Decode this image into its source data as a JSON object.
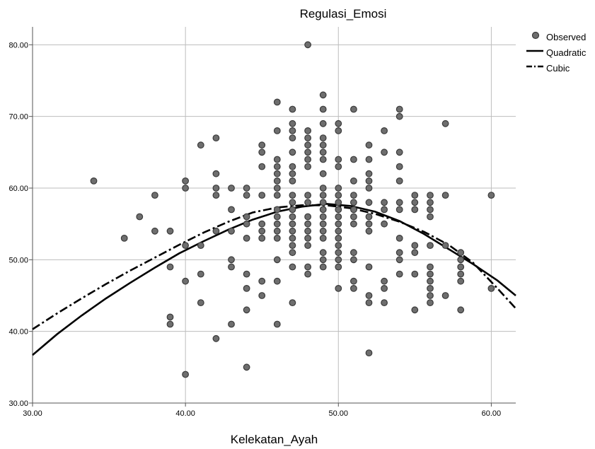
{
  "chart_data": {
    "type": "scatter",
    "title": "Regulasi_Emosi",
    "xlabel": "Kelekatan_Ayah",
    "ylabel": "",
    "xlim": [
      30,
      61.6
    ],
    "ylim": [
      30,
      82.5
    ],
    "xticks": [
      "30.00",
      "40.00",
      "50.00",
      "60.00"
    ],
    "yticks": [
      "30.00",
      "40.00",
      "50.00",
      "60.00",
      "70.00",
      "80.00"
    ],
    "grid": true,
    "legend_position": "right",
    "legend": [
      {
        "label": "Observed",
        "style": "marker"
      },
      {
        "label": "Quadratic",
        "style": "solid"
      },
      {
        "label": "Cubic",
        "style": "dashdot"
      }
    ],
    "colors": {
      "marker_fill": "#6e6e6e",
      "marker_edge": "#3a3a3a",
      "line": "#000000",
      "grid": "#bdbdbd",
      "axis": "#555555"
    },
    "series": [
      {
        "name": "Observed",
        "points": [
          [
            34,
            61
          ],
          [
            36,
            53
          ],
          [
            37,
            56
          ],
          [
            38,
            59
          ],
          [
            38,
            54
          ],
          [
            39,
            54
          ],
          [
            39,
            49
          ],
          [
            39,
            42
          ],
          [
            39,
            41
          ],
          [
            40,
            61
          ],
          [
            40,
            60
          ],
          [
            40,
            52
          ],
          [
            40,
            47
          ],
          [
            40,
            34
          ],
          [
            41,
            66
          ],
          [
            41,
            52
          ],
          [
            41,
            48
          ],
          [
            41,
            44
          ],
          [
            42,
            67
          ],
          [
            42,
            62
          ],
          [
            42,
            60
          ],
          [
            42,
            59
          ],
          [
            42,
            54
          ],
          [
            42,
            39
          ],
          [
            43,
            60
          ],
          [
            43,
            57
          ],
          [
            43,
            54
          ],
          [
            43,
            50
          ],
          [
            43,
            49
          ],
          [
            43,
            41
          ],
          [
            44,
            60
          ],
          [
            44,
            59
          ],
          [
            44,
            56
          ],
          [
            44,
            55
          ],
          [
            44,
            53
          ],
          [
            44,
            48
          ],
          [
            44,
            46
          ],
          [
            44,
            43
          ],
          [
            44,
            35
          ],
          [
            45,
            66
          ],
          [
            45,
            65
          ],
          [
            45,
            63
          ],
          [
            45,
            59
          ],
          [
            45,
            55
          ],
          [
            45,
            54
          ],
          [
            45,
            53
          ],
          [
            45,
            47
          ],
          [
            45,
            45
          ],
          [
            46,
            72
          ],
          [
            46,
            68
          ],
          [
            46,
            64
          ],
          [
            46,
            63
          ],
          [
            46,
            62
          ],
          [
            46,
            61
          ],
          [
            46,
            60
          ],
          [
            46,
            59
          ],
          [
            46,
            57
          ],
          [
            46,
            56
          ],
          [
            46,
            55
          ],
          [
            46,
            54
          ],
          [
            46,
            53
          ],
          [
            46,
            50
          ],
          [
            46,
            47
          ],
          [
            46,
            41
          ],
          [
            47,
            71
          ],
          [
            47,
            69
          ],
          [
            47,
            68
          ],
          [
            47,
            67
          ],
          [
            47,
            65
          ],
          [
            47,
            63
          ],
          [
            47,
            62
          ],
          [
            47,
            61
          ],
          [
            47,
            59
          ],
          [
            47,
            58
          ],
          [
            47,
            57
          ],
          [
            47,
            56
          ],
          [
            47,
            55
          ],
          [
            47,
            54
          ],
          [
            47,
            53
          ],
          [
            47,
            52
          ],
          [
            47,
            51
          ],
          [
            47,
            49
          ],
          [
            47,
            44
          ],
          [
            48,
            80
          ],
          [
            48,
            68
          ],
          [
            48,
            67
          ],
          [
            48,
            66
          ],
          [
            48,
            65
          ],
          [
            48,
            64
          ],
          [
            48,
            63
          ],
          [
            48,
            59
          ],
          [
            48,
            58
          ],
          [
            48,
            56
          ],
          [
            48,
            55
          ],
          [
            48,
            54
          ],
          [
            48,
            53
          ],
          [
            48,
            52
          ],
          [
            48,
            49
          ],
          [
            48,
            48
          ],
          [
            49,
            73
          ],
          [
            49,
            71
          ],
          [
            49,
            69
          ],
          [
            49,
            67
          ],
          [
            49,
            66
          ],
          [
            49,
            65
          ],
          [
            49,
            64
          ],
          [
            49,
            62
          ],
          [
            49,
            60
          ],
          [
            49,
            59
          ],
          [
            49,
            58
          ],
          [
            49,
            57
          ],
          [
            49,
            56
          ],
          [
            49,
            55
          ],
          [
            49,
            54
          ],
          [
            49,
            53
          ],
          [
            49,
            51
          ],
          [
            49,
            50
          ],
          [
            49,
            49
          ],
          [
            50,
            69
          ],
          [
            50,
            68
          ],
          [
            50,
            64
          ],
          [
            50,
            63
          ],
          [
            50,
            60
          ],
          [
            50,
            59
          ],
          [
            50,
            58
          ],
          [
            50,
            57
          ],
          [
            50,
            56
          ],
          [
            50,
            55
          ],
          [
            50,
            54
          ],
          [
            50,
            53
          ],
          [
            50,
            52
          ],
          [
            50,
            51
          ],
          [
            50,
            50
          ],
          [
            50,
            49
          ],
          [
            50,
            46
          ],
          [
            51,
            71
          ],
          [
            51,
            64
          ],
          [
            51,
            61
          ],
          [
            51,
            59
          ],
          [
            51,
            58
          ],
          [
            51,
            57
          ],
          [
            51,
            56
          ],
          [
            51,
            55
          ],
          [
            51,
            51
          ],
          [
            51,
            50
          ],
          [
            51,
            47
          ],
          [
            51,
            46
          ],
          [
            52,
            66
          ],
          [
            52,
            64
          ],
          [
            52,
            62
          ],
          [
            52,
            61
          ],
          [
            52,
            60
          ],
          [
            52,
            58
          ],
          [
            52,
            56
          ],
          [
            52,
            55
          ],
          [
            52,
            54
          ],
          [
            52,
            49
          ],
          [
            52,
            45
          ],
          [
            52,
            44
          ],
          [
            52,
            37
          ],
          [
            53,
            68
          ],
          [
            53,
            65
          ],
          [
            53,
            58
          ],
          [
            53,
            57
          ],
          [
            53,
            55
          ],
          [
            53,
            47
          ],
          [
            53,
            46
          ],
          [
            53,
            44
          ],
          [
            54,
            71
          ],
          [
            54,
            70
          ],
          [
            54,
            65
          ],
          [
            54,
            63
          ],
          [
            54,
            61
          ],
          [
            54,
            58
          ],
          [
            54,
            57
          ],
          [
            54,
            53
          ],
          [
            54,
            51
          ],
          [
            54,
            50
          ],
          [
            54,
            48
          ],
          [
            55,
            59
          ],
          [
            55,
            58
          ],
          [
            55,
            57
          ],
          [
            55,
            52
          ],
          [
            55,
            51
          ],
          [
            55,
            48
          ],
          [
            55,
            43
          ],
          [
            56,
            59
          ],
          [
            56,
            58
          ],
          [
            56,
            57
          ],
          [
            56,
            56
          ],
          [
            56,
            52
          ],
          [
            56,
            49
          ],
          [
            56,
            48
          ],
          [
            56,
            47
          ],
          [
            56,
            46
          ],
          [
            56,
            45
          ],
          [
            56,
            44
          ],
          [
            57,
            69
          ],
          [
            57,
            59
          ],
          [
            57,
            52
          ],
          [
            57,
            45
          ],
          [
            58,
            51
          ],
          [
            58,
            50
          ],
          [
            58,
            49
          ],
          [
            58,
            48
          ],
          [
            58,
            47
          ],
          [
            58,
            43
          ],
          [
            60,
            59
          ],
          [
            60,
            46
          ]
        ]
      },
      {
        "name": "Quadratic",
        "x": [
          30,
          31.6,
          33.2,
          34.8,
          36.4,
          38,
          39.6,
          41.2,
          42.8,
          44.4,
          46,
          47.6,
          49.2,
          50.8,
          52.4,
          54,
          55.6,
          57.2,
          58.8,
          60.4,
          61.6
        ],
        "values": [
          36.7,
          39.6,
          42.2,
          44.6,
          46.8,
          48.9,
          50.9,
          52.6,
          54.2,
          55.6,
          56.7,
          57.4,
          57.8,
          57.5,
          56.7,
          55.4,
          53.6,
          51.5,
          49.4,
          47.1,
          45.0
        ]
      },
      {
        "name": "Cubic",
        "x": [
          30,
          31.6,
          33.2,
          34.8,
          36.4,
          38,
          39.6,
          41.2,
          42.8,
          44.4,
          46,
          47.6,
          49.2,
          50.8,
          52.4,
          54,
          55.6,
          57.2,
          58.8,
          60.4,
          61.6
        ],
        "values": [
          40.3,
          42.5,
          44.6,
          46.6,
          48.5,
          50.3,
          52.1,
          53.8,
          55.3,
          56.6,
          57.3,
          57.6,
          57.6,
          57.2,
          56.4,
          55.3,
          53.9,
          52.1,
          49.6,
          46.0,
          43.2
        ]
      }
    ]
  }
}
